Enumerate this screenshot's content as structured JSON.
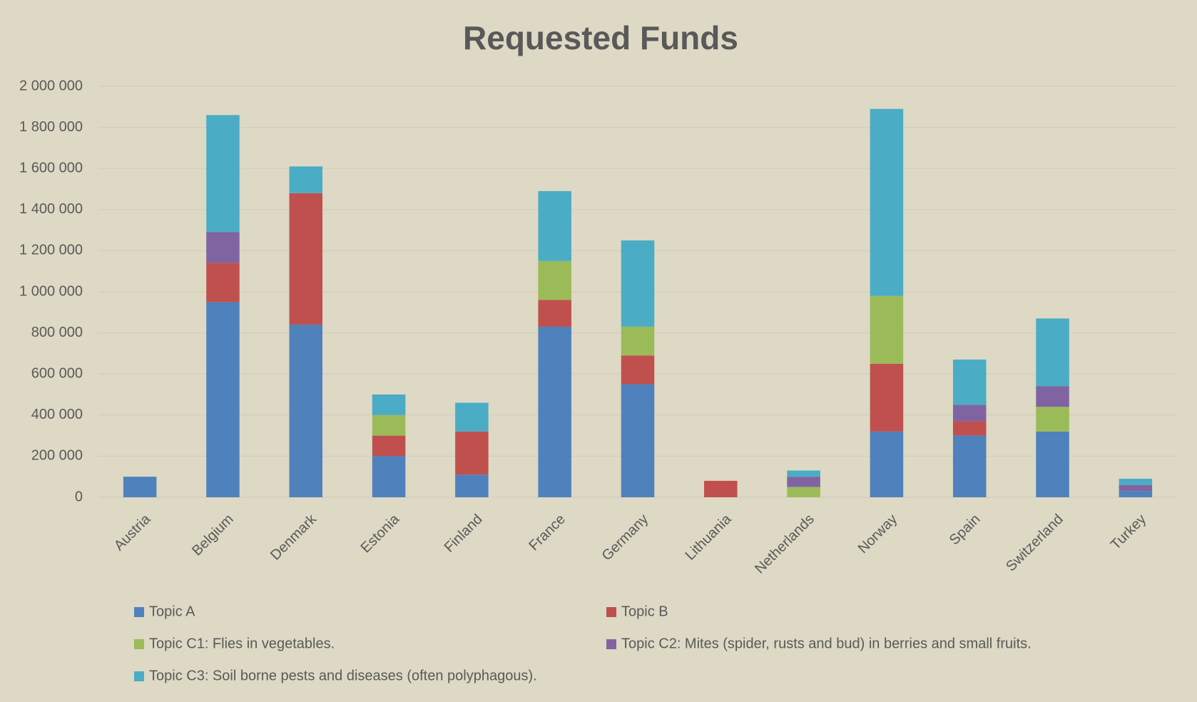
{
  "chart_data": {
    "type": "stacked_bar",
    "title": "Requested Funds",
    "categories": [
      "Austria",
      "Belgium",
      "Denmark",
      "Estonia",
      "Finland",
      "France",
      "Germany",
      "Lithuania",
      "Netherlands",
      "Norway",
      "Spain",
      "Switzerland",
      "Turkey"
    ],
    "series": [
      {
        "name": "Topic A",
        "color": "#4f81bd",
        "values": [
          100000,
          950000,
          840000,
          200000,
          110000,
          830000,
          550000,
          0,
          0,
          320000,
          300000,
          320000,
          30000
        ]
      },
      {
        "name": "Topic B",
        "color": "#c0504d",
        "values": [
          0,
          190000,
          640000,
          100000,
          210000,
          130000,
          140000,
          80000,
          0,
          330000,
          70000,
          0,
          0
        ]
      },
      {
        "name": "Topic C1: Flies in vegetables.",
        "color": "#9bbb59",
        "values": [
          0,
          0,
          0,
          100000,
          0,
          190000,
          140000,
          0,
          50000,
          330000,
          0,
          120000,
          0
        ]
      },
      {
        "name": "Topic C2: Mites (spider, rusts and bud) in berries and small fruits.",
        "color": "#8064a2",
        "values": [
          0,
          150000,
          0,
          0,
          0,
          0,
          0,
          0,
          50000,
          0,
          80000,
          100000,
          30000
        ]
      },
      {
        "name": "Topic C3: Soil borne pests and diseases (often polyphagous).",
        "color": "#4bacc6",
        "values": [
          0,
          570000,
          130000,
          100000,
          140000,
          340000,
          420000,
          0,
          30000,
          910000,
          220000,
          330000,
          30000
        ]
      }
    ],
    "ylim": [
      0,
      2000000
    ],
    "yticks": [
      0,
      {
        "value": 200000,
        "label": "200 000"
      },
      {
        "value": 400000,
        "label": "400 000"
      },
      {
        "value": 600000,
        "label": "600 000"
      },
      {
        "value": 800000,
        "label": "800 000"
      },
      {
        "value": 1000000,
        "label": "1 000 000"
      },
      {
        "value": 1200000,
        "label": "1 200 000"
      },
      {
        "value": 1400000,
        "label": "1 400 000"
      },
      {
        "value": 1600000,
        "label": "1 600 000"
      },
      {
        "value": 1800000,
        "label": "1 800 000"
      },
      {
        "value": 2000000,
        "label": "2 000 000"
      }
    ],
    "grid": true,
    "legend": "bottom"
  }
}
